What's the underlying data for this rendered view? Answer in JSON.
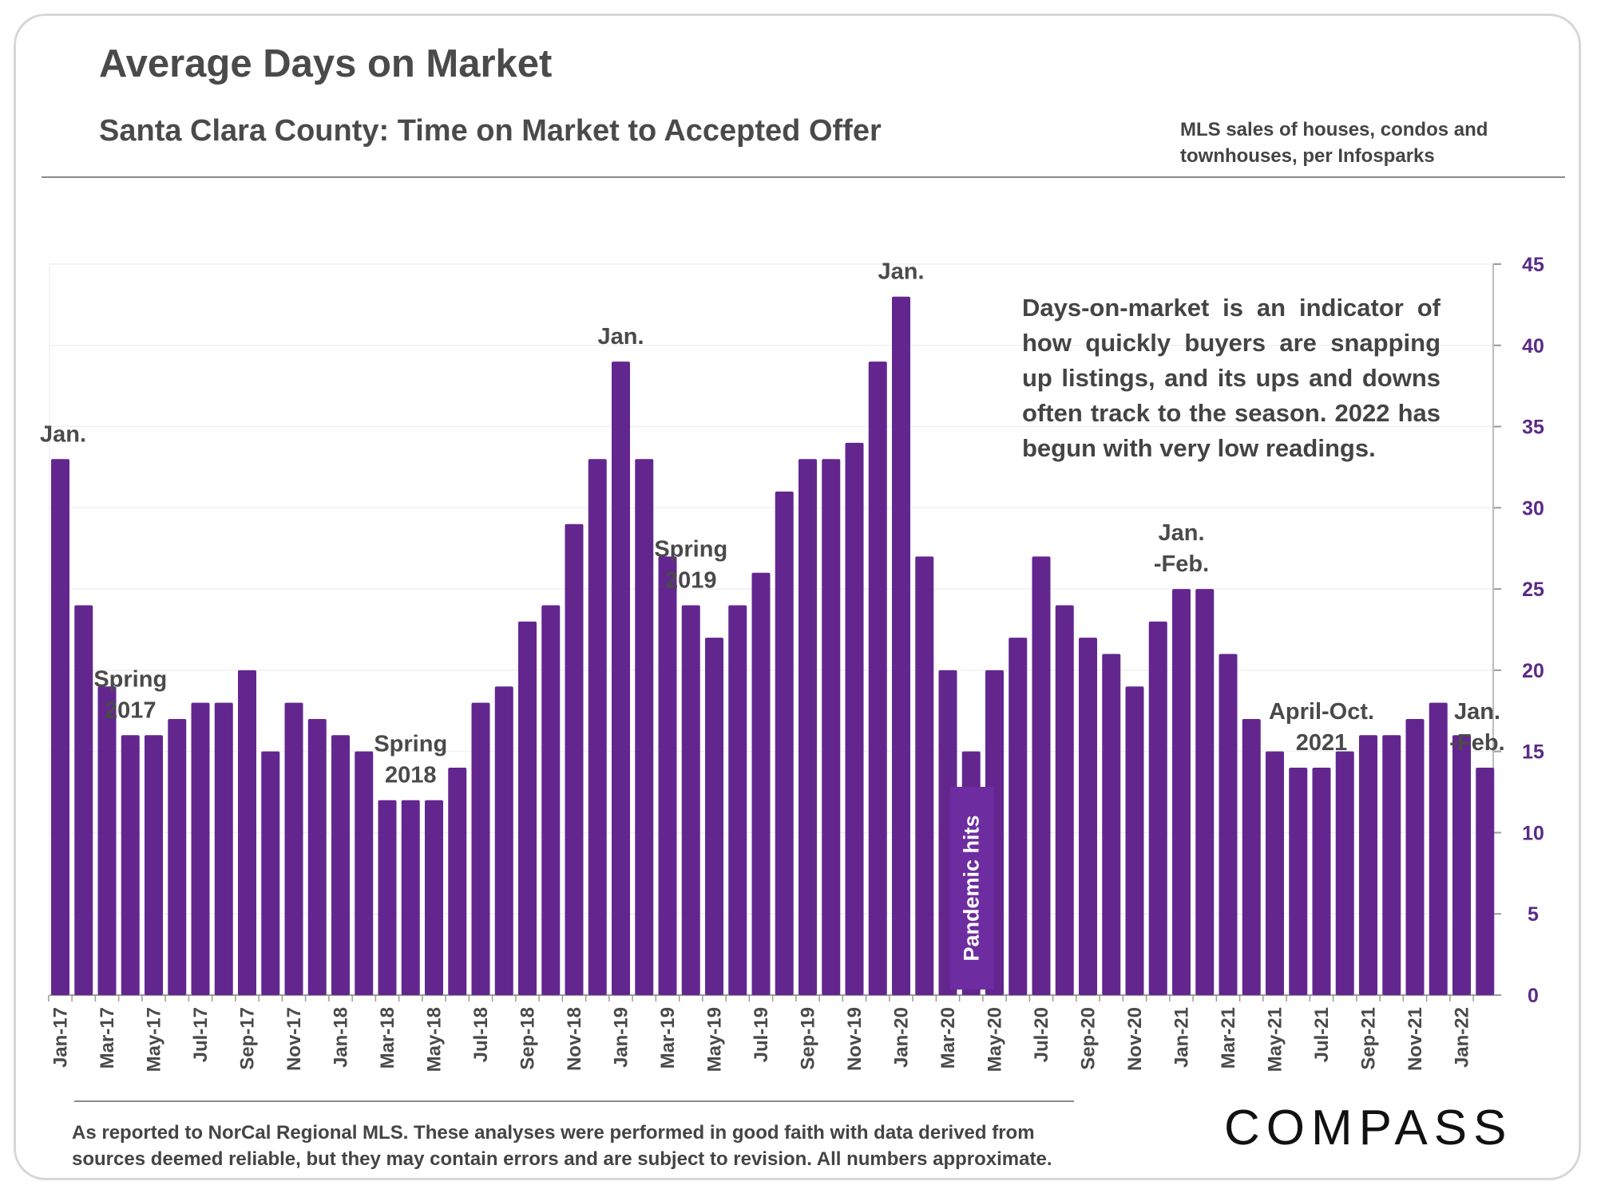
{
  "header": {
    "title": "Average Days on Market",
    "subtitle": "Santa Clara County: Time on Market to Accepted Offer",
    "source_line1": "MLS sales of houses, condos and",
    "source_line2": "townhouses, per Infosparks"
  },
  "note": "Days-on-market is an indicator of how quickly buyers are snapping up listings, and its ups and downs often track to the season. 2022 has begun with very low readings.",
  "pandemic_label": "Pandemic hits",
  "footer": {
    "line1": "As reported to NorCal Regional MLS. These analyses were performed in good faith with data derived from",
    "line2": "sources deemed reliable, but they may contain errors and are subject to revision. All numbers approximate."
  },
  "logo": "COMPASS",
  "colors": {
    "bar": "#63268f",
    "axis_ticks": "#5a2a86",
    "text": "#4a4a4a"
  },
  "chart_data": {
    "type": "bar",
    "title": "Average Days on Market",
    "subtitle": "Santa Clara County: Time on Market to Accepted Offer",
    "xlabel": "",
    "ylabel": "",
    "ylim": [
      0,
      45
    ],
    "yticks": [
      0,
      5,
      10,
      15,
      20,
      25,
      30,
      35,
      40,
      45
    ],
    "y_axis_side": "right",
    "grid": true,
    "categories": [
      "Jan-17",
      "Feb-17",
      "Mar-17",
      "Apr-17",
      "May-17",
      "Jun-17",
      "Jul-17",
      "Aug-17",
      "Sep-17",
      "Oct-17",
      "Nov-17",
      "Dec-17",
      "Jan-18",
      "Feb-18",
      "Mar-18",
      "Apr-18",
      "May-18",
      "Jun-18",
      "Jul-18",
      "Aug-18",
      "Sep-18",
      "Oct-18",
      "Nov-18",
      "Dec-18",
      "Jan-19",
      "Feb-19",
      "Mar-19",
      "Apr-19",
      "May-19",
      "Jun-19",
      "Jul-19",
      "Aug-19",
      "Sep-19",
      "Oct-19",
      "Nov-19",
      "Dec-19",
      "Jan-20",
      "Feb-20",
      "Mar-20",
      "Apr-20",
      "May-20",
      "Jun-20",
      "Jul-20",
      "Aug-20",
      "Sep-20",
      "Oct-20",
      "Nov-20",
      "Dec-20",
      "Jan-21",
      "Feb-21",
      "Mar-21",
      "Apr-21",
      "May-21",
      "Jun-21",
      "Jul-21",
      "Aug-21",
      "Sep-21",
      "Oct-21",
      "Nov-21",
      "Dec-21",
      "Jan-22",
      "Feb-22"
    ],
    "x_tick_labels": [
      "Jan-17",
      "Mar-17",
      "May-17",
      "Jul-17",
      "Sep-17",
      "Nov-17",
      "Jan-18",
      "Mar-18",
      "May-18",
      "Jul-18",
      "Sep-18",
      "Nov-18",
      "Jan-19",
      "Mar-19",
      "May-19",
      "Jul-19",
      "Sep-19",
      "Nov-19",
      "Jan-20",
      "Mar-20",
      "May-20",
      "Jul-20",
      "Sep-20",
      "Nov-20",
      "Jan-21",
      "Mar-21",
      "May-21",
      "Jul-21",
      "Sep-21",
      "Nov-21",
      "Jan-22"
    ],
    "values": [
      33,
      24,
      19,
      16,
      16,
      17,
      18,
      18,
      20,
      15,
      18,
      17,
      16,
      15,
      12,
      12,
      12,
      14,
      18,
      19,
      23,
      24,
      29,
      33,
      39,
      33,
      27,
      24,
      22,
      24,
      26,
      31,
      33,
      33,
      34,
      39,
      43,
      27,
      20,
      15,
      20,
      22,
      27,
      24,
      22,
      21,
      19,
      23,
      25,
      25,
      21,
      17,
      15,
      14,
      14,
      15,
      16,
      16,
      17,
      18,
      16,
      14
    ],
    "annotations": [
      {
        "lines": [
          "Jan."
        ],
        "category": "Jan-17"
      },
      {
        "lines": [
          "Spring",
          "2017"
        ],
        "category": "Apr-17"
      },
      {
        "lines": [
          "Spring",
          "2018"
        ],
        "category": "Apr-18"
      },
      {
        "lines": [
          "Jan."
        ],
        "category": "Jan-19"
      },
      {
        "lines": [
          "Spring",
          "2019"
        ],
        "category": "Apr-19"
      },
      {
        "lines": [
          "Jan."
        ],
        "category": "Jan-20"
      },
      {
        "lines": [
          "Jan.",
          "-Feb."
        ],
        "category": "Jan-21"
      },
      {
        "lines": [
          "April-Oct.",
          "2021"
        ],
        "category": "Jul-21"
      },
      {
        "lines": [
          "Jan.",
          "-Feb."
        ],
        "category": "Feb-22"
      }
    ]
  }
}
